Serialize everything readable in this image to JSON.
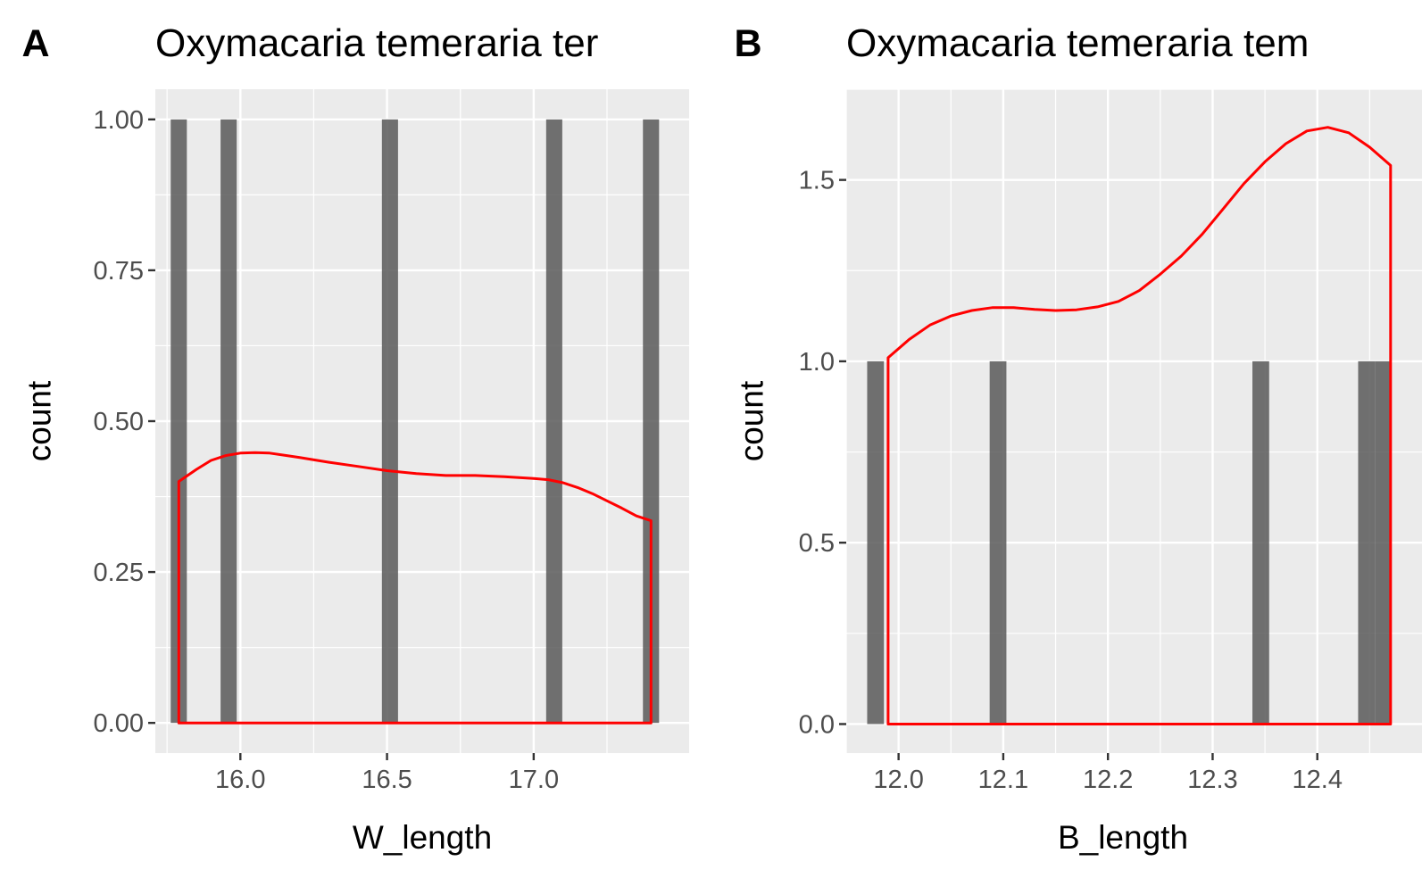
{
  "chart_data": [
    {
      "type": "bar",
      "panel_tag": "A",
      "title": "Oxymacaria temeraria ter",
      "xlabel": "W_length",
      "ylabel": "count",
      "xlim": [
        15.71,
        17.53
      ],
      "ylim": [
        -0.05,
        1.05
      ],
      "x_ticks": [
        16.0,
        16.5,
        17.0
      ],
      "x_tick_labels": [
        "16.0",
        "16.5",
        "17.0"
      ],
      "y_ticks": [
        0,
        0.25,
        0.5,
        0.75,
        1.0
      ],
      "y_tick_labels": [
        "0.00",
        "0.25",
        "0.50",
        "0.75",
        "1.00"
      ],
      "grid": true,
      "bar_width": 0.055,
      "bars": [
        {
          "x": 15.79,
          "count": 1
        },
        {
          "x": 15.96,
          "count": 1
        },
        {
          "x": 16.51,
          "count": 1
        },
        {
          "x": 17.07,
          "count": 1
        },
        {
          "x": 17.4,
          "count": 1
        }
      ],
      "series": [
        {
          "kind": "density",
          "color": "#ff0000",
          "x": [
            15.79,
            15.85,
            15.9,
            15.95,
            16.0,
            16.05,
            16.1,
            16.2,
            16.3,
            16.4,
            16.5,
            16.6,
            16.7,
            16.8,
            16.9,
            17.0,
            17.05,
            17.1,
            17.15,
            17.2,
            17.25,
            17.3,
            17.35,
            17.4
          ],
          "y": [
            0.4,
            0.42,
            0.435,
            0.443,
            0.447,
            0.448,
            0.447,
            0.44,
            0.432,
            0.425,
            0.418,
            0.413,
            0.41,
            0.41,
            0.408,
            0.405,
            0.403,
            0.398,
            0.39,
            0.38,
            0.368,
            0.356,
            0.343,
            0.335
          ]
        }
      ]
    },
    {
      "type": "bar",
      "panel_tag": "B",
      "title": "Oxymacaria temeraria tem",
      "xlabel": "B_length",
      "ylabel": "count",
      "xlim": [
        11.95,
        12.5
      ],
      "ylim": [
        -0.08,
        1.75
      ],
      "x_ticks": [
        12.0,
        12.1,
        12.2,
        12.3,
        12.4
      ],
      "x_tick_labels": [
        "12.0",
        "12.1",
        "12.2",
        "12.3",
        "12.4"
      ],
      "y_ticks": [
        0,
        0.5,
        1.0,
        1.5
      ],
      "y_tick_labels": [
        "0.0",
        "0.5",
        "1.0",
        "1.5"
      ],
      "grid": true,
      "bar_width": 0.016,
      "bars": [
        {
          "x": 11.978,
          "count": 1
        },
        {
          "x": 12.095,
          "count": 1
        },
        {
          "x": 12.346,
          "count": 1
        },
        {
          "x": 12.447,
          "count": 1
        },
        {
          "x": 12.463,
          "count": 1
        }
      ],
      "series": [
        {
          "kind": "density",
          "color": "#ff0000",
          "x": [
            11.99,
            12.01,
            12.03,
            12.05,
            12.07,
            12.09,
            12.11,
            12.13,
            12.15,
            12.17,
            12.19,
            12.21,
            12.23,
            12.25,
            12.27,
            12.29,
            12.31,
            12.33,
            12.35,
            12.37,
            12.39,
            12.41,
            12.43,
            12.45,
            12.47
          ],
          "y": [
            1.01,
            1.06,
            1.1,
            1.125,
            1.14,
            1.148,
            1.148,
            1.143,
            1.14,
            1.142,
            1.15,
            1.165,
            1.195,
            1.24,
            1.29,
            1.35,
            1.42,
            1.49,
            1.55,
            1.6,
            1.635,
            1.645,
            1.63,
            1.59,
            1.54
          ]
        }
      ]
    }
  ]
}
